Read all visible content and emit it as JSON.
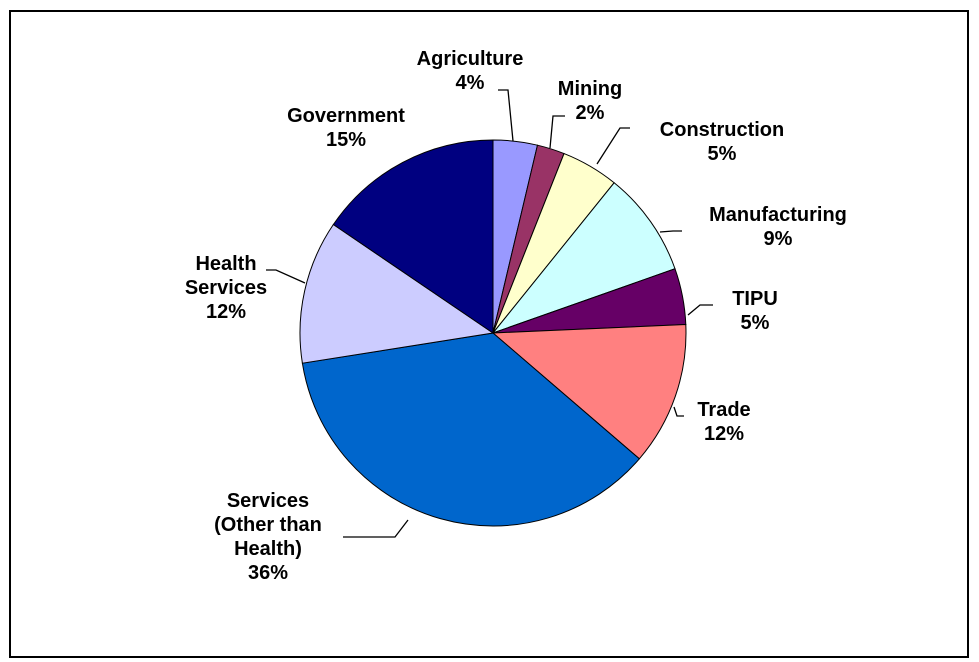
{
  "chart_data": {
    "type": "pie",
    "title": "",
    "start_angle_deg": 0,
    "direction": "clockwise",
    "slices": [
      {
        "name": "Agriculture",
        "label_lines": [
          "Agriculture"
        ],
        "percent_label": "4%",
        "value": 3.7,
        "color": "#9999ff"
      },
      {
        "name": "Mining",
        "label_lines": [
          "Mining"
        ],
        "percent_label": "2%",
        "value": 2.3,
        "color": "#993366"
      },
      {
        "name": "Construction",
        "label_lines": [
          "Construction"
        ],
        "percent_label": "5%",
        "value": 4.8,
        "color": "#ffffcc"
      },
      {
        "name": "Manufacturing",
        "label_lines": [
          "Manufacturing"
        ],
        "percent_label": "9%",
        "value": 8.8,
        "color": "#ccffff"
      },
      {
        "name": "TIPU",
        "label_lines": [
          "TIPU"
        ],
        "percent_label": "5%",
        "value": 4.7,
        "color": "#660066"
      },
      {
        "name": "Trade",
        "label_lines": [
          "Trade"
        ],
        "percent_label": "12%",
        "value": 12.0,
        "color": "#ff8080"
      },
      {
        "name": "Services (Other than Health)",
        "label_lines": [
          "Services",
          "(Other than",
          "Health)"
        ],
        "percent_label": "36%",
        "value": 36.2,
        "color": "#0066cc"
      },
      {
        "name": "Health Services",
        "label_lines": [
          "Health",
          "Services"
        ],
        "percent_label": "12%",
        "value": 12.0,
        "color": "#ccccff"
      },
      {
        "name": "Government",
        "label_lines": [
          "Government"
        ],
        "percent_label": "15%",
        "value": 15.5,
        "color": "#000080"
      }
    ]
  }
}
